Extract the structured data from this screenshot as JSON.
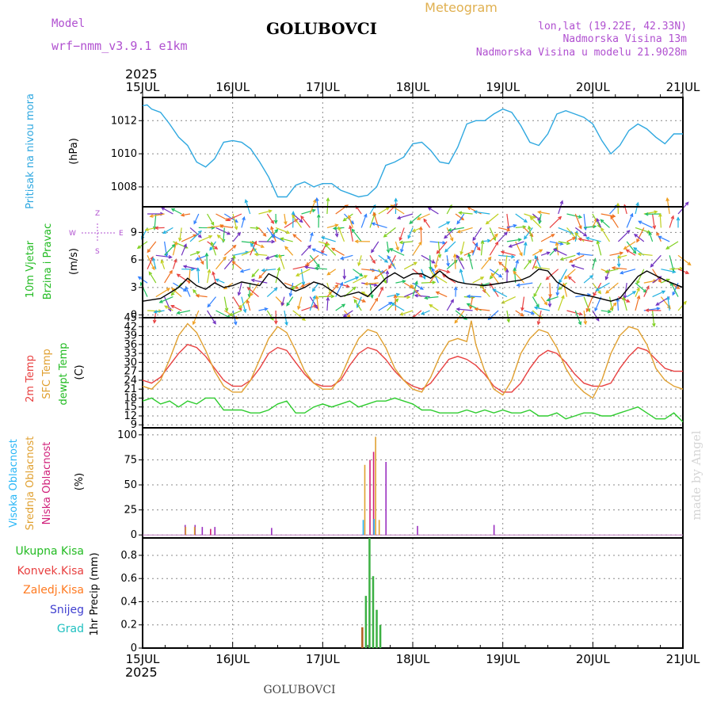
{
  "header": {
    "model_label": "Model",
    "model_name": "wrf−nmm_v3.9.1  e1km",
    "station": "GOLUBOVCI",
    "meteogram": "Meteogram",
    "lonlat": "lon,lat (19.22E, 42.33N)",
    "elevation": "Nadmorska Visina 13m",
    "model_elevation": "Nadmorska Visina u modelu 21.9028m",
    "year_top": "2025",
    "year_bottom": "2025",
    "footer_station": "GOLUBOVCI",
    "credit": "made by Angel"
  },
  "colors": {
    "pressure": "#2fa8e0",
    "wind_speed": "#000000",
    "t2m": "#e84040",
    "sfc": "#e0a030",
    "dewpt": "#2ecc2e",
    "cloud_high": "#29b6f6",
    "cloud_mid": "#e0a030",
    "cloud_low": "#d0207a",
    "cloud_other": "#9b30c0",
    "precip_total": "#3cb043",
    "precip_conv": "#d94040",
    "precip_frozen": "#ff8c20",
    "snow": "#4040d0",
    "graupel": "#20c0c0",
    "model": "#b050d0",
    "header_gold": "#e0b050"
  },
  "chart_data": [
    {
      "type": "line",
      "panel": "pressure",
      "ylabel_1": "Pritisak na nivou mora",
      "ylabel_2": "(hPa)",
      "x_ticks": [
        "15JUL",
        "16JUL",
        "17JUL",
        "18JUL",
        "19JUL",
        "20JUL",
        "21JUL"
      ],
      "x_unit": "day offset from 15JUL 2025 00h",
      "ylim": [
        1006.8,
        1013.4
      ],
      "yticks": [
        1008,
        1010,
        1012
      ],
      "grid": true,
      "series": [
        {
          "key": "pressure",
          "x": [
            0,
            0.05,
            0.1,
            0.2,
            0.3,
            0.4,
            0.5,
            0.6,
            0.7,
            0.8,
            0.9,
            1.0,
            1.1,
            1.2,
            1.3,
            1.4,
            1.5,
            1.6,
            1.7,
            1.8,
            1.9,
            2.0,
            2.1,
            2.2,
            2.3,
            2.4,
            2.5,
            2.6,
            2.7,
            2.8,
            2.9,
            3.0,
            3.1,
            3.2,
            3.3,
            3.4,
            3.5,
            3.6,
            3.7,
            3.8,
            3.9,
            4.0,
            4.1,
            4.2,
            4.3,
            4.4,
            4.5,
            4.6,
            4.7,
            4.8,
            4.9,
            5.0,
            5.1,
            5.2,
            5.3,
            5.4,
            5.5,
            5.6,
            5.7,
            5.8,
            5.9,
            6.0
          ],
          "values": [
            1012.9,
            1012.95,
            1012.7,
            1012.5,
            1011.8,
            1011.0,
            1010.5,
            1009.5,
            1009.2,
            1009.7,
            1010.7,
            1010.8,
            1010.7,
            1010.3,
            1009.5,
            1008.6,
            1007.4,
            1007.4,
            1008.1,
            1008.3,
            1008.0,
            1008.2,
            1008.2,
            1007.8,
            1007.6,
            1007.4,
            1007.5,
            1008.0,
            1009.3,
            1009.5,
            1009.8,
            1010.6,
            1010.7,
            1010.2,
            1009.5,
            1009.4,
            1010.4,
            1011.8,
            1012.0,
            1012.0,
            1012.4,
            1012.7,
            1012.5,
            1011.7,
            1010.7,
            1010.5,
            1011.2,
            1012.4,
            1012.6,
            1012.4,
            1012.2,
            1011.8,
            1010.8,
            1010.0,
            1010.5,
            1011.4,
            1011.8,
            1011.5,
            1011.0,
            1010.6,
            1011.2,
            1011.2
          ]
        }
      ]
    },
    {
      "type": "line",
      "panel": "wind",
      "ylabel_1": "10m Vjetar",
      "ylabel_2": "Brzina i Pravac",
      "ylabel_3": "(m/s)",
      "compass_labels": [
        "Z",
        "W",
        "E",
        "S"
      ],
      "ylim": [
        -0.3,
        11.8
      ],
      "yticks": [
        0,
        3,
        6,
        9
      ],
      "grid": true,
      "series": [
        {
          "key": "wind_speed",
          "x": [
            0,
            0.2,
            0.4,
            0.5,
            0.6,
            0.7,
            0.8,
            0.9,
            1.0,
            1.1,
            1.2,
            1.3,
            1.4,
            1.5,
            1.6,
            1.7,
            1.8,
            1.9,
            2.0,
            2.2,
            2.4,
            2.5,
            2.6,
            2.7,
            2.8,
            2.9,
            3.0,
            3.1,
            3.2,
            3.3,
            3.4,
            3.5,
            3.6,
            3.8,
            4.0,
            4.2,
            4.3,
            4.4,
            4.5,
            4.6,
            4.8,
            5.0,
            5.2,
            5.3,
            5.4,
            5.5,
            5.6,
            5.8,
            6.0
          ],
          "values": [
            1.5,
            1.8,
            3.0,
            4.0,
            3.2,
            2.8,
            3.5,
            3.0,
            3.2,
            3.6,
            3.4,
            3.2,
            4.5,
            4.0,
            3.0,
            2.6,
            3.0,
            3.6,
            3.3,
            2.0,
            2.5,
            2.0,
            3.0,
            4.0,
            4.6,
            4.0,
            4.5,
            4.5,
            4.0,
            4.8,
            4.0,
            3.6,
            3.4,
            3.2,
            3.5,
            3.8,
            4.2,
            5.0,
            4.8,
            3.6,
            2.4,
            2.0,
            1.5,
            1.8,
            3.0,
            4.2,
            4.8,
            3.8,
            3.0
          ]
        }
      ]
    },
    {
      "type": "line",
      "panel": "temperature",
      "ylabel_1": "2m Temp",
      "ylabel_2": "SFC Temp",
      "ylabel_3": "dewpt Temp",
      "ylabel_4": "(C)",
      "ylim": [
        8,
        45
      ],
      "yticks": [
        9,
        12,
        15,
        18,
        21,
        24,
        27,
        30,
        33,
        36,
        39,
        42,
        45
      ],
      "grid": true,
      "series": [
        {
          "key": "t2m",
          "x": [
            0,
            0.1,
            0.2,
            0.3,
            0.4,
            0.5,
            0.6,
            0.7,
            0.8,
            0.9,
            1.0,
            1.1,
            1.2,
            1.3,
            1.4,
            1.5,
            1.6,
            1.7,
            1.8,
            1.9,
            2.0,
            2.1,
            2.2,
            2.3,
            2.4,
            2.5,
            2.6,
            2.7,
            2.8,
            2.9,
            3.0,
            3.1,
            3.2,
            3.3,
            3.4,
            3.5,
            3.6,
            3.7,
            3.8,
            3.9,
            4.0,
            4.1,
            4.2,
            4.3,
            4.4,
            4.5,
            4.6,
            4.7,
            4.8,
            4.9,
            5.0,
            5.1,
            5.2,
            5.3,
            5.4,
            5.5,
            5.6,
            5.7,
            5.8,
            5.9,
            6.0
          ],
          "values": [
            24,
            23,
            25,
            29,
            33,
            36,
            35,
            32,
            28,
            24,
            22,
            22,
            24,
            28,
            33,
            35,
            34,
            30,
            26,
            23,
            22,
            22,
            24,
            29,
            33,
            35,
            34,
            31,
            27,
            24,
            22,
            21,
            23,
            27,
            31,
            32,
            31,
            29,
            26,
            22,
            20,
            20,
            23,
            28,
            32,
            34,
            33,
            30,
            26,
            23,
            22,
            22,
            23,
            28,
            32,
            35,
            34,
            31,
            28,
            27,
            27
          ]
        },
        {
          "key": "sfc",
          "x": [
            0,
            0.1,
            0.2,
            0.3,
            0.4,
            0.5,
            0.6,
            0.7,
            0.8,
            0.9,
            1.0,
            1.1,
            1.2,
            1.3,
            1.4,
            1.5,
            1.6,
            1.7,
            1.8,
            1.9,
            2.0,
            2.1,
            2.2,
            2.3,
            2.4,
            2.5,
            2.6,
            2.7,
            2.8,
            2.9,
            3.0,
            3.1,
            3.2,
            3.3,
            3.4,
            3.5,
            3.6,
            3.65,
            3.7,
            3.8,
            3.9,
            4.0,
            4.1,
            4.2,
            4.3,
            4.4,
            4.5,
            4.6,
            4.7,
            4.8,
            4.9,
            5.0,
            5.1,
            5.2,
            5.3,
            5.4,
            5.5,
            5.6,
            5.7,
            5.8,
            5.9,
            6.0
          ],
          "values": [
            22,
            21,
            24,
            31,
            39,
            43,
            40,
            34,
            27,
            22,
            20,
            20,
            24,
            31,
            38,
            42,
            40,
            34,
            27,
            23,
            21,
            21,
            25,
            32,
            38,
            41,
            40,
            35,
            28,
            24,
            21,
            20,
            25,
            32,
            37,
            38,
            37,
            44,
            36,
            27,
            21,
            19,
            24,
            33,
            38,
            41,
            40,
            35,
            28,
            23,
            20,
            18,
            24,
            33,
            39,
            42,
            41,
            36,
            28,
            24,
            22,
            21
          ]
        },
        {
          "key": "dewpt",
          "x": [
            0,
            0.1,
            0.2,
            0.3,
            0.4,
            0.5,
            0.6,
            0.7,
            0.8,
            0.9,
            1.0,
            1.1,
            1.2,
            1.3,
            1.4,
            1.5,
            1.6,
            1.7,
            1.8,
            1.9,
            2.0,
            2.1,
            2.2,
            2.3,
            2.4,
            2.5,
            2.6,
            2.7,
            2.8,
            2.9,
            3.0,
            3.1,
            3.2,
            3.3,
            3.4,
            3.5,
            3.6,
            3.7,
            3.8,
            3.9,
            4.0,
            4.1,
            4.2,
            4.3,
            4.4,
            4.5,
            4.6,
            4.7,
            4.8,
            4.9,
            5.0,
            5.1,
            5.2,
            5.3,
            5.4,
            5.5,
            5.6,
            5.7,
            5.8,
            5.9,
            6.0
          ],
          "values": [
            17,
            18,
            16,
            17,
            15,
            17,
            16,
            18,
            18,
            14,
            14,
            14,
            13,
            13,
            14,
            16,
            17,
            13,
            13,
            15,
            16,
            15,
            16,
            17,
            15,
            16,
            17,
            17,
            18,
            17,
            16,
            14,
            14,
            13,
            13,
            13,
            14,
            13,
            14,
            13,
            14,
            13,
            13,
            14,
            12,
            12,
            13,
            11,
            12,
            13,
            13,
            12,
            12,
            13,
            14,
            15,
            13,
            11,
            11,
            13,
            10
          ]
        }
      ]
    },
    {
      "type": "bar",
      "panel": "cloud",
      "ylabel_1": "Visoka Oblacnost",
      "ylabel_2": "Srednja Oblacnost",
      "ylabel_3": "Niska Oblacnost",
      "ylabel_4": "(%)",
      "ylim": [
        -3,
        107
      ],
      "yticks": [
        0,
        25,
        50,
        75,
        100
      ],
      "grid": true,
      "bars": [
        {
          "x": 0.42,
          "values": [
            0,
            0,
            0,
            10
          ]
        },
        {
          "x": 0.46,
          "values": [
            0,
            8,
            0,
            0
          ]
        },
        {
          "x": 0.53,
          "values": [
            0,
            0,
            0,
            10
          ]
        },
        {
          "x": 0.56,
          "values": [
            0,
            8,
            0,
            0
          ]
        },
        {
          "x": 0.61,
          "values": [
            0,
            0,
            0,
            8
          ]
        },
        {
          "x": 0.72,
          "values": [
            0,
            0,
            6,
            0
          ]
        },
        {
          "x": 0.75,
          "values": [
            0,
            0,
            0,
            8
          ]
        },
        {
          "x": 1.38,
          "values": [
            0,
            0,
            0,
            7
          ]
        },
        {
          "x": 2.45,
          "values": [
            15,
            70,
            0,
            0
          ]
        },
        {
          "x": 2.49,
          "values": [
            0,
            0,
            75,
            0
          ]
        },
        {
          "x": 2.53,
          "values": [
            0,
            0,
            83,
            0
          ]
        },
        {
          "x": 2.57,
          "values": [
            16,
            98,
            0,
            0
          ]
        },
        {
          "x": 2.61,
          "values": [
            0,
            15,
            0,
            0
          ]
        },
        {
          "x": 2.65,
          "values": [
            0,
            0,
            0,
            73
          ]
        },
        {
          "x": 3.0,
          "values": [
            0,
            0,
            0,
            9
          ]
        },
        {
          "x": 3.85,
          "values": [
            0,
            0,
            0,
            10
          ]
        }
      ]
    },
    {
      "type": "bar",
      "panel": "precip",
      "ylabel_1": "1hr Precip (mm)",
      "legend": [
        "Ukupna  Kisa",
        "Konvek.Kisa",
        "Zaledj.Kisa",
        "Snijeg",
        "Grad"
      ],
      "ylim": [
        0,
        0.95
      ],
      "yticks": [
        0,
        0.2,
        0.4,
        0.6,
        0.8
      ],
      "ytick_labels": [
        "0",
        "0.2",
        "0.4",
        "0.6",
        "0.8"
      ],
      "grid": true,
      "bars": [
        {
          "x": 2.44,
          "value": 0.18
        },
        {
          "x": 2.48,
          "value": 0.45
        },
        {
          "x": 2.52,
          "value": 0.95
        },
        {
          "x": 2.56,
          "value": 0.62
        },
        {
          "x": 2.6,
          "value": 0.33
        },
        {
          "x": 2.64,
          "value": 0.2
        }
      ]
    }
  ]
}
